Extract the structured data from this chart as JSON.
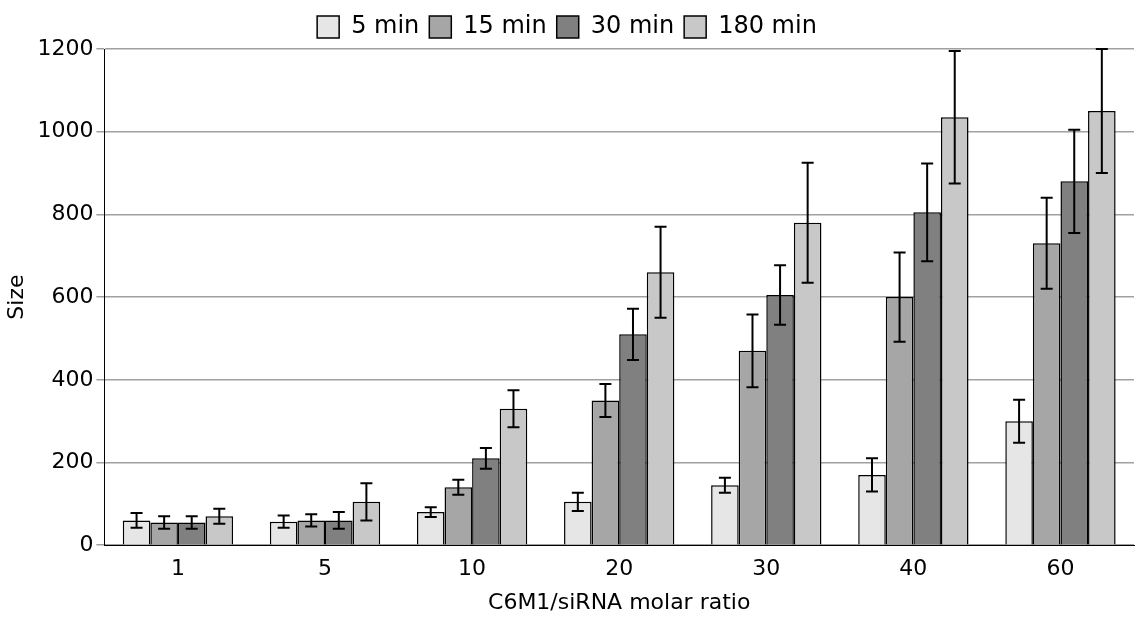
{
  "chart_data": {
    "type": "bar",
    "xlabel": "C6M1/siRNA molar ratio",
    "ylabel": "Size",
    "categories": [
      "1",
      "5",
      "10",
      "20",
      "30",
      "40",
      "60"
    ],
    "series": [
      {
        "name": "5 min",
        "color": "#e6e6e6",
        "values": [
          60,
          57,
          80,
          105,
          145,
          170,
          300
        ],
        "errors": [
          18,
          15,
          12,
          22,
          18,
          40,
          52
        ]
      },
      {
        "name": "15 min",
        "color": "#a6a6a6",
        "values": [
          55,
          60,
          140,
          350,
          470,
          600,
          730
        ],
        "errors": [
          15,
          15,
          18,
          40,
          88,
          108,
          110
        ]
      },
      {
        "name": "30 min",
        "color": "#808080",
        "values": [
          55,
          60,
          210,
          510,
          605,
          805,
          880
        ],
        "errors": [
          15,
          20,
          25,
          62,
          72,
          118,
          125
        ]
      },
      {
        "name": "180 min",
        "color": "#c8c8c8",
        "values": [
          70,
          105,
          330,
          660,
          780,
          1035,
          1050
        ],
        "errors": [
          18,
          45,
          45,
          110,
          145,
          160,
          150
        ]
      }
    ],
    "ylim": [
      0,
      1200
    ],
    "yticks": [
      0,
      200,
      400,
      600,
      800,
      1000,
      1200
    ],
    "grid": "y",
    "legend": "top"
  }
}
